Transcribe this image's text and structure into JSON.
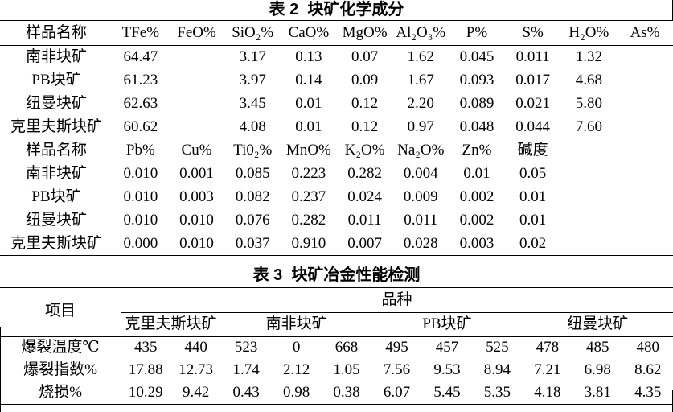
{
  "colors": {
    "background": "#ffffff",
    "text": "#000000",
    "rule": "#000000"
  },
  "table2": {
    "title": "表 2  块矿化学成分",
    "header": [
      "样品名称",
      "TFe%",
      "FeO%",
      "SiO₂%",
      "CaO%",
      "MgO%",
      "Al₂O₃%",
      "P%",
      "S%",
      "H₂O%",
      "As%"
    ],
    "rows": [
      [
        "南非块矿",
        "64.47",
        "",
        "3.17",
        "0.13",
        "0.07",
        "1.62",
        "0.045",
        "0.011",
        "1.32",
        ""
      ],
      [
        "PB块矿",
        "61.23",
        "",
        "3.97",
        "0.14",
        "0.09",
        "1.67",
        "0.093",
        "0.017",
        "4.68",
        ""
      ],
      [
        "纽曼块矿",
        "62.63",
        "",
        "3.45",
        "0.01",
        "0.12",
        "2.20",
        "0.089",
        "0.021",
        "5.80",
        ""
      ],
      [
        "克里夫斯块矿",
        "60.62",
        "",
        "4.08",
        "0.01",
        "0.12",
        "0.97",
        "0.048",
        "0.044",
        "7.60",
        ""
      ],
      [
        "样品名称",
        "Pb%",
        "Cu%",
        "Ti0₂%",
        "MnO%",
        "K₂O%",
        "Na₂O%",
        "Zn%",
        "碱度",
        "",
        ""
      ],
      [
        "南非块矿",
        "0.010",
        "0.001",
        "0.085",
        "0.223",
        "0.282",
        "0.004",
        "0.01",
        "0.05",
        "",
        ""
      ],
      [
        "PB块矿",
        "0.010",
        "0.003",
        "0.082",
        "0.237",
        "0.024",
        "0.009",
        "0.002",
        "0.01",
        "",
        ""
      ],
      [
        "纽曼块矿",
        "0.010",
        "0.010",
        "0.076",
        "0.282",
        "0.011",
        "0.011",
        "0.002",
        "0.01",
        "",
        ""
      ],
      [
        "克里夫斯块矿",
        "0.000",
        "0.010",
        "0.037",
        "0.910",
        "0.007",
        "0.028",
        "0.003",
        "0.02",
        "",
        ""
      ]
    ]
  },
  "table3": {
    "title": "表 3  块矿冶金性能检测",
    "item_header": "项目",
    "variety_header": "品种",
    "groups": [
      {
        "label": "克里夫斯块矿",
        "span": 2
      },
      {
        "label": "南非块矿",
        "span": 3
      },
      {
        "label": "PB块矿",
        "span": 3
      },
      {
        "label": "纽曼块矿",
        "span": 3
      }
    ],
    "rows": [
      {
        "label": "爆裂温度℃",
        "values": [
          "435",
          "440",
          "523",
          "0",
          "668",
          "495",
          "457",
          "525",
          "478",
          "485",
          "480"
        ]
      },
      {
        "label": "爆裂指数%",
        "values": [
          "17.88",
          "12.73",
          "1.74",
          "2.12",
          "1.05",
          "7.56",
          "9.53",
          "8.94",
          "7.21",
          "6.98",
          "8.62"
        ]
      },
      {
        "label": "烧损%",
        "values": [
          "10.29",
          "9.42",
          "0.43",
          "0.98",
          "0.38",
          "6.07",
          "5.45",
          "5.35",
          "4.18",
          "3.81",
          "4.35"
        ]
      }
    ]
  }
}
